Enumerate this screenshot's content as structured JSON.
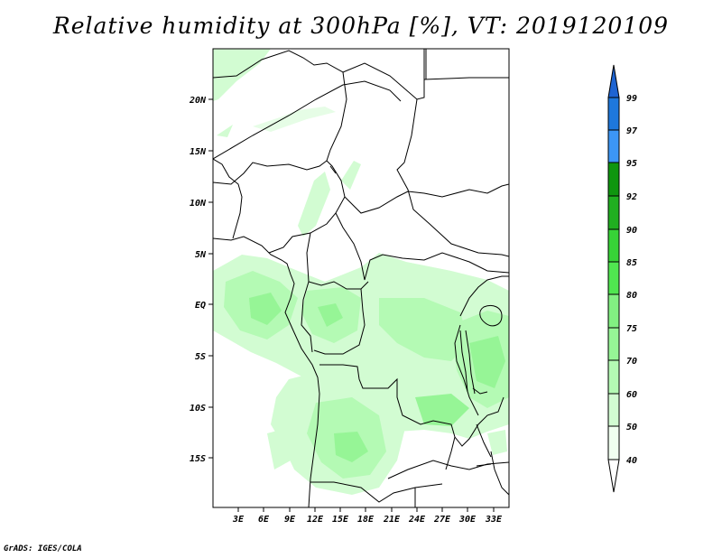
{
  "title": "Relative humidity at 300hPa [%], VT: 2019120109",
  "credit": "GrADS: IGES/COLA",
  "map": {
    "lat_labels": [
      "20N",
      "15N",
      "10N",
      "5N",
      "EQ",
      "5S",
      "10S",
      "15S"
    ],
    "lon_labels": [
      "3E",
      "6E",
      "9E",
      "12E",
      "15E",
      "18E",
      "21E",
      "24E",
      "27E",
      "30E",
      "33E"
    ]
  },
  "legend": {
    "labels": [
      "99",
      "97",
      "95",
      "92",
      "90",
      "85",
      "80",
      "75",
      "70",
      "60",
      "50",
      "40"
    ],
    "colors": [
      "#1e64d2",
      "#1e78dc",
      "#3c96f5",
      "#0f960f",
      "#20af20",
      "#37d337",
      "#50e650",
      "#82f082",
      "#96f596",
      "#b4fab4",
      "#d2fcd2",
      "#f0fff0"
    ]
  }
}
